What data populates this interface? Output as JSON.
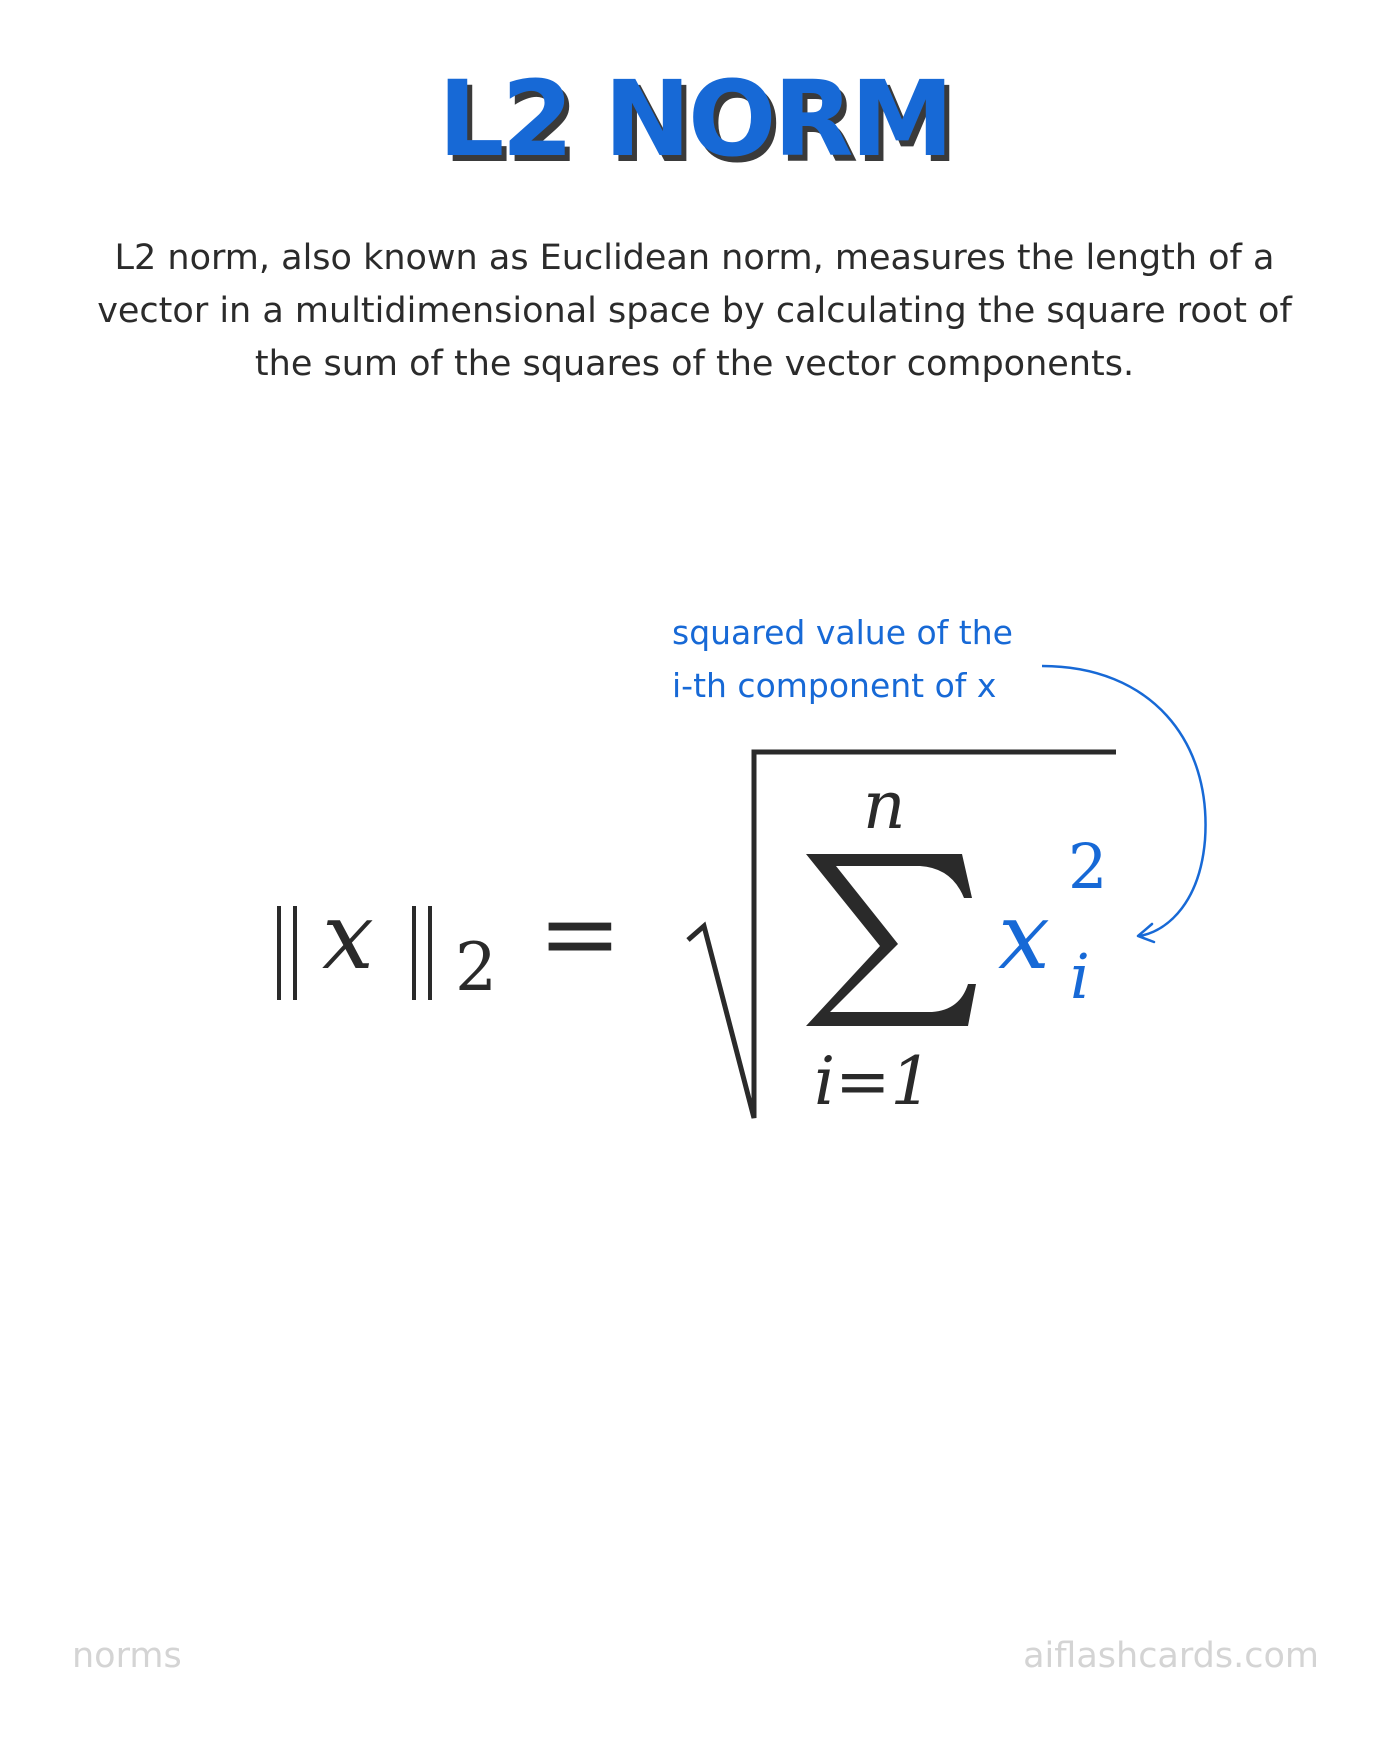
{
  "title": "L2 NORM",
  "description": "L2 norm, also known as Euclidean norm, measures the length of a vector in a multidimensional space by calculating the square root of the sum of the squares of the vector components.",
  "annotation": {
    "line1": "squared value of the",
    "line2": "i-th component of x"
  },
  "formula": {
    "lhs_var": "x",
    "lhs_subscript": "2",
    "equals": "=",
    "sum_upper": "n",
    "sum_lower": "i=1",
    "term_var": "x",
    "term_subscript": "i",
    "term_superscript": "2"
  },
  "footer": {
    "left": "norms",
    "right": "aiflashcards.com"
  },
  "colors": {
    "accent": "#1769d6",
    "text": "#2a2a2a",
    "footer": "#d4d4d4"
  }
}
